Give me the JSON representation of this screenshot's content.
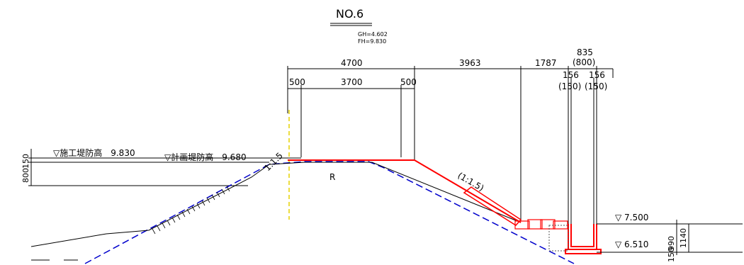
{
  "section": {
    "title": "NO.6",
    "gh": "GH=4.602",
    "fh": "FH=9.830"
  },
  "dimensions": {
    "d4700": "4700",
    "d3963": "3963",
    "d1787": "1787",
    "d835": "835",
    "d800p": "(800)",
    "d500a": "500",
    "d3700": "3700",
    "d500b": "500",
    "d156a": "156",
    "d150a": "(150)",
    "d156b": "156",
    "d150b": "(150)",
    "d150v": "150",
    "d800v": "800",
    "d990v": "990",
    "d150v2": "150",
    "d1140v": "1140"
  },
  "levels": {
    "construction_crest": "▽施工堤防高　9.830",
    "planned_crest": "▽計画堤防高　9.680",
    "water_high": "▽ 7.500",
    "water_low": "▽ 6.510"
  },
  "slopes": {
    "left": "1:1.5",
    "right": "(1:1.5)"
  },
  "labels": {
    "r": "R"
  },
  "colors": {
    "design_line": "#ff0000",
    "existing_ground": "#0000cc",
    "centerline": "#e6d200",
    "ink": "#000000"
  }
}
